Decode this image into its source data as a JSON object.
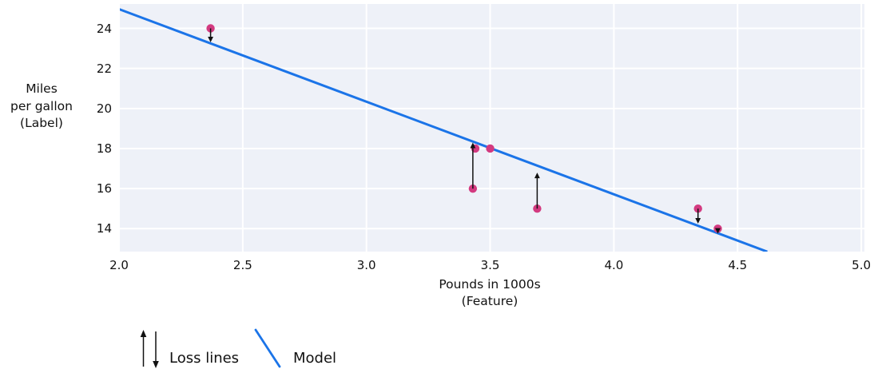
{
  "figure": {
    "y_axis_label_lines": [
      "Miles",
      "per gallon",
      "(Label)"
    ],
    "x_axis_label_lines": [
      "Pounds in 1000s",
      "(Feature)"
    ],
    "legend": {
      "loss_label": "Loss lines",
      "model_label": "Model"
    }
  },
  "chart_data": {
    "type": "scatter",
    "title": "",
    "xlabel": "Pounds in 1000s (Feature)",
    "ylabel": "Miles per gallon (Label)",
    "xlim": [
      2.0,
      5.0
    ],
    "ylim": [
      12.8,
      25.2
    ],
    "grid": true,
    "legend_position": "bottom-left",
    "x_ticks": [
      "2.0",
      "2.5",
      "3.0",
      "3.5",
      "4.0",
      "4.5",
      "5.0"
    ],
    "y_ticks": [
      "14",
      "16",
      "18",
      "20",
      "22",
      "24"
    ],
    "points": [
      {
        "x": 2.37,
        "y": 24
      },
      {
        "x": 3.43,
        "y": 16
      },
      {
        "x": 3.44,
        "y": 18
      },
      {
        "x": 3.5,
        "y": 18
      },
      {
        "x": 3.69,
        "y": 15
      },
      {
        "x": 4.34,
        "y": 15
      },
      {
        "x": 4.42,
        "y": 14
      }
    ],
    "model_line": {
      "x1": 2.0,
      "y1": 24.96,
      "x2": 4.62,
      "y2": 12.85
    },
    "loss_arrows": [
      {
        "x": 2.37,
        "y_from": 24,
        "y_to": 23.3,
        "direction": "down"
      },
      {
        "x": 3.43,
        "y_from": 16,
        "y_to": 18.3,
        "direction": "up"
      },
      {
        "x": 3.69,
        "y_from": 15,
        "y_to": 16.8,
        "direction": "up"
      },
      {
        "x": 4.34,
        "y_from": 15,
        "y_to": 14.25,
        "direction": "down"
      },
      {
        "x": 4.42,
        "y_from": 14,
        "y_to": 13.75,
        "direction": "down"
      }
    ],
    "colors": {
      "point": "#d33a80",
      "model_line": "#1b74e8",
      "loss_arrow": "#111111",
      "plot_background": "#eef1f8",
      "gridline": "#ffffff",
      "text": "#111111"
    }
  }
}
